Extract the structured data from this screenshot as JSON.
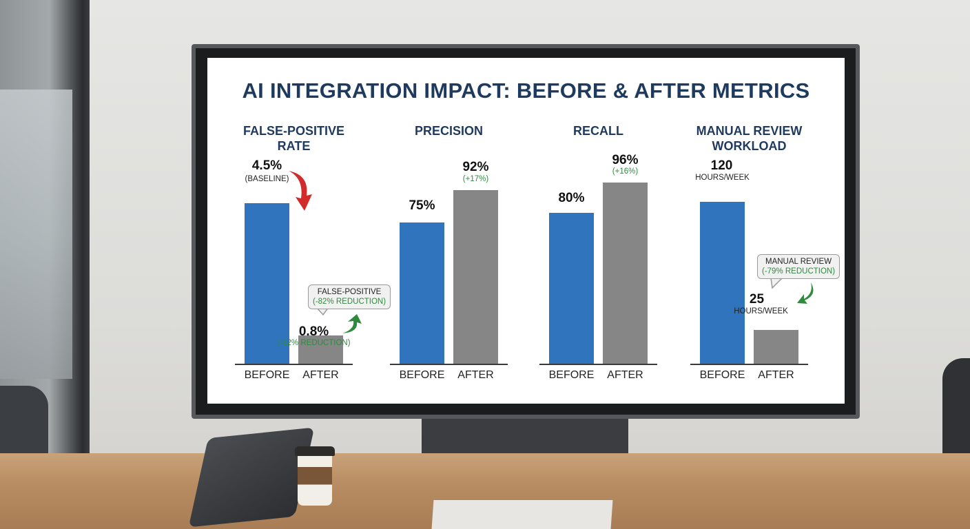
{
  "chart_title": "AI INTEGRATION IMPACT: BEFORE & AFTER METRICS",
  "colors": {
    "before": "#2f74bd",
    "after": "#868686",
    "title": "#1f3a5f",
    "decrease_arrow": "#d22b2b",
    "increase_arrow": "#2e8b3e"
  },
  "chart_data": [
    {
      "type": "bar",
      "title_lines": [
        "FALSE-POSITIVE",
        "RATE"
      ],
      "categories": [
        "BEFORE",
        "AFTER"
      ],
      "values": [
        4.5,
        0.8
      ],
      "unit": "%",
      "ylim": [
        0,
        5.3
      ],
      "labels": [
        "4.5%",
        "0.8%"
      ],
      "sublabels": [
        "(BASELINE)",
        "(-82% REDUCTION)"
      ],
      "callout": [
        "FALSE-POSITIVE",
        "(-82% REDUCTION)"
      ]
    },
    {
      "type": "bar",
      "title_lines": [
        "PRECISION"
      ],
      "categories": [
        "BEFORE",
        "AFTER"
      ],
      "values": [
        75,
        92
      ],
      "unit": "%",
      "ylim": [
        0,
        100
      ],
      "labels": [
        "75%",
        "92%"
      ],
      "sublabels": [
        "",
        "(+17%)"
      ]
    },
    {
      "type": "bar",
      "title_lines": [
        "RECALL"
      ],
      "categories": [
        "BEFORE",
        "AFTER"
      ],
      "values": [
        80,
        96
      ],
      "unit": "%",
      "ylim": [
        0,
        100
      ],
      "labels": [
        "80%",
        "96%"
      ],
      "sublabels": [
        "",
        "(+16%)"
      ]
    },
    {
      "type": "bar",
      "title_lines": [
        "MANUAL REVIEW",
        "WORKLOAD"
      ],
      "categories": [
        "BEFORE",
        "AFTER"
      ],
      "values": [
        120,
        25
      ],
      "unit": "hours/week",
      "ylim": [
        0,
        140
      ],
      "labels": [
        "120",
        "25"
      ],
      "sublabels": [
        "HOURS/WEEK",
        "HOURS/WEEK"
      ],
      "callout": [
        "MANUAL REVIEW",
        "(-79% REDUCTION)"
      ]
    }
  ]
}
